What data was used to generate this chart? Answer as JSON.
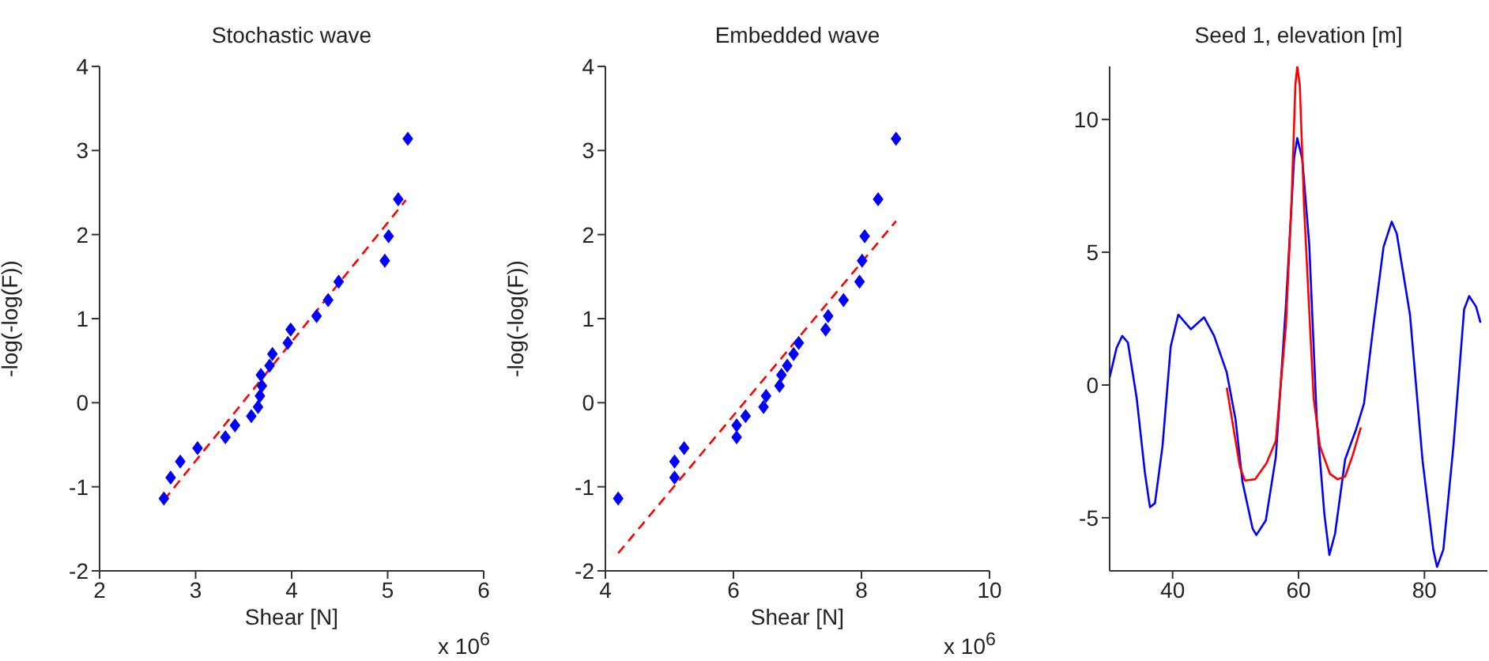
{
  "chart_data": [
    {
      "type": "scatter",
      "title": "Stochastic wave",
      "xlabel": "Shear [N]",
      "ylabel": "-log(-log(F))",
      "xlim": [
        2,
        6
      ],
      "xticks": [
        2,
        3,
        4,
        5,
        6
      ],
      "ylim": [
        -2,
        4
      ],
      "yticks": [
        -2,
        -1,
        0,
        1,
        2,
        3,
        4
      ],
      "annotations": [
        "x 10$^{6}$"
      ],
      "series": [
        {
          "marker": "diamond",
          "color": "#0000ff",
          "x": [
            2.67,
            2.74,
            2.84,
            3.02,
            3.31,
            3.41,
            3.58,
            3.65,
            3.67,
            3.69,
            3.68,
            3.77,
            3.8,
            3.96,
            3.99,
            4.26,
            4.38,
            4.49,
            4.97,
            5.01,
            5.11,
            5.21
          ],
          "values": [
            -1.14,
            -0.89,
            -0.7,
            -0.54,
            -0.41,
            -0.27,
            -0.16,
            -0.05,
            0.08,
            0.2,
            0.33,
            0.44,
            0.58,
            0.71,
            0.87,
            1.03,
            1.22,
            1.44,
            1.69,
            1.98,
            2.42,
            3.14
          ]
        },
        {
          "type": "line",
          "line_style": "dashed",
          "marker": "none",
          "color": "#ff0000",
          "x": [
            2.67,
            5.19
          ],
          "values": [
            -1.16,
            2.41
          ]
        }
      ]
    },
    {
      "type": "scatter",
      "title": "Embedded wave",
      "xlabel": "Shear [N]",
      "ylabel": "-log(-log(F))",
      "xlim": [
        4,
        10
      ],
      "xticks": [
        4,
        6,
        8,
        10
      ],
      "ylim": [
        -2,
        4
      ],
      "yticks": [
        -2,
        -1,
        0,
        1,
        2,
        3,
        4
      ],
      "annotations": [
        "x 10$^{6}$"
      ],
      "series": [
        {
          "marker": "diamond",
          "color": "#0000ff",
          "x": [
            4.2,
            5.08,
            5.08,
            5.23,
            6.05,
            6.05,
            6.19,
            6.47,
            6.51,
            6.72,
            6.75,
            6.84,
            6.94,
            7.02,
            7.44,
            7.48,
            7.72,
            7.97,
            8.01,
            8.05,
            8.26,
            8.54
          ],
          "values": [
            -1.14,
            -0.89,
            -0.7,
            -0.54,
            -0.41,
            -0.27,
            -0.16,
            -0.05,
            0.08,
            0.2,
            0.33,
            0.44,
            0.58,
            0.71,
            0.87,
            1.03,
            1.22,
            1.44,
            1.69,
            1.98,
            2.42,
            3.14
          ]
        },
        {
          "type": "line",
          "line_style": "dashed",
          "marker": "none",
          "color": "#ff0000",
          "x": [
            4.2,
            8.54
          ],
          "values": [
            -1.79,
            2.16
          ]
        }
      ]
    },
    {
      "type": "line",
      "title": "Seed 1, elevation [m]",
      "xlim": [
        30,
        90
      ],
      "xticks": [
        40,
        60,
        80
      ],
      "ylim": [
        -7,
        12
      ],
      "yticks": [
        -5,
        0,
        5,
        10
      ],
      "series": [
        {
          "line_style": "solid",
          "marker": "none",
          "color": "#0000ff",
          "x": [
            30,
            31.1,
            32,
            32.9,
            34.3,
            35.6,
            36.4,
            37.2,
            38.4,
            39.7,
            40.9,
            42.9,
            45,
            46.6,
            48.6,
            50,
            51.1,
            52.7,
            53.3,
            54.8,
            56.4,
            58,
            59.3,
            59.8,
            60.6,
            61.7,
            62.9,
            64.1,
            64.9,
            65.8,
            67.4,
            69.1,
            70.4,
            71.9,
            73.5,
            74.8,
            75.6,
            77.7,
            79.7,
            81.4,
            82,
            83,
            84.6,
            86.3,
            87.1,
            88.2,
            88.9
          ],
          "values": [
            0.28,
            1.4,
            1.85,
            1.6,
            -0.5,
            -3.3,
            -4.6,
            -4.45,
            -2.3,
            1.45,
            2.65,
            2.1,
            2.55,
            1.85,
            0.47,
            -1.3,
            -3.65,
            -5.4,
            -5.65,
            -5.1,
            -2.7,
            3,
            8.55,
            9.3,
            8.5,
            5.3,
            -1.3,
            -4.85,
            -6.4,
            -5.6,
            -2.8,
            -1.7,
            -0.7,
            2.25,
            5.2,
            6.15,
            5.7,
            2.65,
            -2.85,
            -6.2,
            -6.85,
            -6.2,
            -2.3,
            2.85,
            3.35,
            2.95,
            2.35
          ]
        },
        {
          "line_style": "solid",
          "marker": "none",
          "color": "#ff0000",
          "x": [
            48.6,
            50.7,
            51.5,
            53.1,
            54.9,
            56.4,
            58,
            58.9,
            59.5,
            59.8,
            60.2,
            60.9,
            62.4,
            63.4,
            65,
            66.2,
            67.4,
            68.6,
            69.9
          ],
          "values": [
            -0.1,
            -3.1,
            -3.6,
            -3.55,
            -2.95,
            -2.1,
            2.25,
            6.95,
            11.3,
            12,
            11.3,
            6.6,
            -0.5,
            -2.3,
            -3.35,
            -3.55,
            -3.45,
            -2.65,
            -1.6
          ]
        }
      ]
    }
  ]
}
